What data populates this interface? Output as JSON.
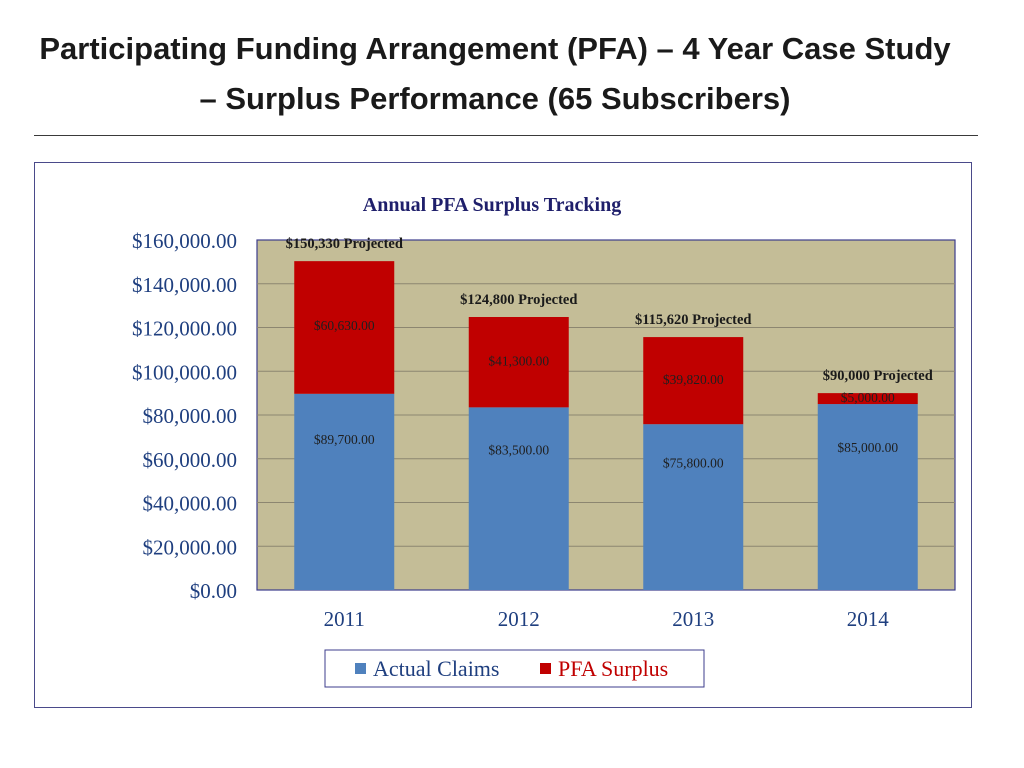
{
  "slide": {
    "title": "Participating Funding Arrangement (PFA) – 4 Year Case Study – Surplus Performance (65 Subscribers)"
  },
  "chart_data": {
    "type": "bar",
    "stacked": true,
    "title": "Annual PFA Surplus Tracking",
    "categories": [
      "2011",
      "2012",
      "2013",
      "2014"
    ],
    "series": [
      {
        "name": "Actual Claims",
        "values": [
          89700,
          83500,
          75800,
          85000
        ],
        "labels": [
          "$89,700.00",
          "$83,500.00",
          "$75,800.00",
          "$85,000.00"
        ],
        "color": "#4f81bd"
      },
      {
        "name": "PFA Surplus",
        "values": [
          60630,
          41300,
          39820,
          5000
        ],
        "labels": [
          "$60,630.00",
          "$41,300.00",
          "$39,820.00",
          "$5,000.00"
        ],
        "color": "#c00000"
      }
    ],
    "projected_labels": [
      "$150,330 Projected",
      "$124,800 Projected",
      "$115,620 Projected",
      "$90,000 Projected"
    ],
    "ylim": [
      0,
      160000
    ],
    "yticks": [
      "$0.00",
      "$20,000.00",
      "$40,000.00",
      "$60,000.00",
      "$80,000.00",
      "$100,000.00",
      "$120,000.00",
      "$140,000.00",
      "$160,000.00"
    ],
    "plot_background": "#c4bd97",
    "grid": true,
    "legend_position": "bottom"
  }
}
